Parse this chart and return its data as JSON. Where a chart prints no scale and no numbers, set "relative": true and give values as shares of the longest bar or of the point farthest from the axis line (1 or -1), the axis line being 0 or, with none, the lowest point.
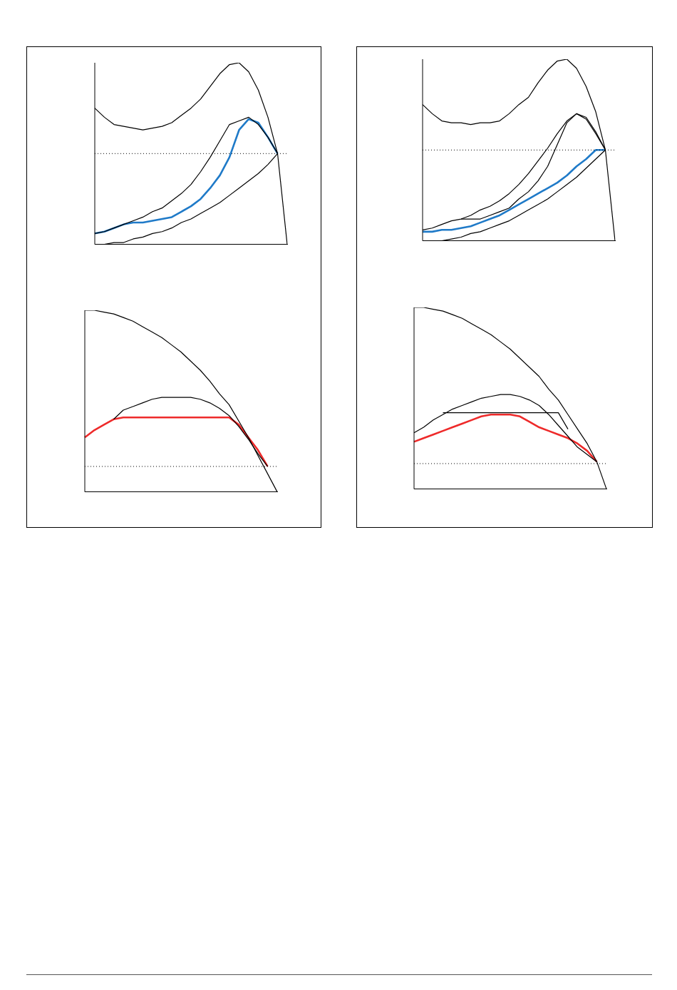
{
  "chart_data": [
    {
      "type": "line",
      "relative": true,
      "categories": [
        null,
        null,
        null,
        null,
        null,
        null,
        null,
        null,
        null,
        null,
        null,
        null,
        null,
        null,
        null,
        null,
        null,
        null,
        null,
        null,
        null
      ],
      "legend": false,
      "grid": false,
      "marker": "none",
      "series": [
        {
          "color": "#000000",
          "values": [
            0.75,
            0.7,
            0.66,
            0.65,
            0.64,
            0.63,
            0.64,
            0.65,
            0.67,
            0.71,
            0.75,
            0.8,
            0.87,
            0.94,
            0.99,
            1,
            0.95,
            0.85,
            0.7,
            0.5,
            0
          ]
        },
        {
          "color": "#000000",
          "values": [
            0.06,
            0.07,
            0.09,
            0.11,
            0.13,
            0.15,
            0.18,
            0.2,
            0.24,
            0.28,
            0.33,
            0.4,
            0.48,
            0.57,
            0.66,
            0.68,
            0.7,
            0.66,
            0.59,
            0.5,
            null
          ]
        },
        {
          "color": "#000000",
          "values": [
            0,
            0,
            0.01,
            0.01,
            0.03,
            0.04,
            0.06,
            0.07,
            0.09,
            0.12,
            0.14,
            0.17,
            0.2,
            0.23,
            0.27,
            0.31,
            0.35,
            0.39,
            0.44,
            0.5,
            null
          ]
        },
        {
          "color": "#1f7ac8",
          "values": [
            0.06,
            0.07,
            0.09,
            0.11,
            0.12,
            0.12,
            0.13,
            0.14,
            0.15,
            0.18,
            0.21,
            0.25,
            0.31,
            0.38,
            0.48,
            0.63,
            0.69,
            0.67,
            0.59,
            0.5,
            null
          ]
        }
      ],
      "ref_lines": [
        {
          "axis": "y",
          "value": 0.5,
          "line_style": "dotted",
          "color": "#000000"
        }
      ]
    },
    {
      "type": "line",
      "relative": true,
      "categories": [
        null,
        null,
        null,
        null,
        null,
        null,
        null,
        null,
        null,
        null,
        null,
        null,
        null,
        null,
        null,
        null,
        null,
        null,
        null,
        null,
        null
      ],
      "legend": false,
      "grid": false,
      "marker": "none",
      "series": [
        {
          "color": "#000000",
          "values": [
            0.75,
            0.7,
            0.66,
            0.65,
            0.65,
            0.64,
            0.65,
            0.65,
            0.66,
            0.7,
            0.75,
            0.79,
            0.87,
            0.94,
            0.99,
            1,
            0.95,
            0.85,
            0.71,
            0.5,
            0
          ]
        },
        {
          "color": "#000000",
          "values": [
            0.06,
            0.07,
            0.09,
            0.11,
            0.12,
            0.14,
            0.17,
            0.19,
            0.22,
            0.26,
            0.31,
            0.37,
            0.44,
            0.51,
            0.59,
            0.66,
            0.7,
            0.68,
            0.6,
            0.5,
            null
          ]
        },
        {
          "color": "#000000",
          "values": [
            null,
            null,
            null,
            null,
            0.12,
            0.12,
            0.12,
            0.14,
            0.16,
            0.18,
            0.23,
            0.27,
            0.33,
            0.41,
            0.53,
            0.65,
            0.7,
            0.67,
            0.59,
            0.5,
            null
          ]
        },
        {
          "color": "#000000",
          "values": [
            0,
            0,
            0,
            0.01,
            0.02,
            0.04,
            0.05,
            0.07,
            0.09,
            0.11,
            0.14,
            0.17,
            0.2,
            0.23,
            0.27,
            0.31,
            0.35,
            0.4,
            0.45,
            0.5,
            null
          ]
        },
        {
          "color": "#1f7ac8",
          "values": [
            0.05,
            0.05,
            0.06,
            0.06,
            0.07,
            0.08,
            0.1,
            0.12,
            0.14,
            0.17,
            0.2,
            0.23,
            0.26,
            0.29,
            0.32,
            0.36,
            0.41,
            0.45,
            0.5,
            0.5,
            null
          ]
        }
      ],
      "ref_lines": [
        {
          "axis": "y",
          "value": 0.5,
          "line_style": "dotted",
          "color": "#000000"
        }
      ]
    },
    {
      "type": "line",
      "relative": true,
      "categories": [
        null,
        null,
        null,
        null,
        null,
        null,
        null,
        null,
        null,
        null,
        null,
        null,
        null,
        null,
        null,
        null,
        null,
        null,
        null,
        null,
        null
      ],
      "legend": false,
      "grid": false,
      "marker": "none",
      "series": [
        {
          "color": "#000000",
          "values": [
            1,
            1,
            0.99,
            0.98,
            0.96,
            0.94,
            0.91,
            0.88,
            0.85,
            0.81,
            0.77,
            0.72,
            0.67,
            0.61,
            0.54,
            0.48,
            0.39,
            0.3,
            0.2,
            0.1,
            0
          ]
        },
        {
          "color": "#000000",
          "values": [
            null,
            null,
            null,
            0.4,
            0.45,
            0.47,
            0.49,
            0.51,
            0.52,
            0.52,
            0.52,
            0.52,
            0.51,
            0.49,
            0.46,
            0.42,
            0.36,
            0.29,
            0.21,
            0.14,
            null
          ]
        },
        {
          "color": "#ee2a2a",
          "values": [
            0.3,
            0.34,
            0.37,
            0.4,
            0.41,
            0.41,
            0.41,
            0.41,
            0.41,
            0.41,
            0.41,
            0.41,
            0.41,
            0.41,
            0.41,
            0.41,
            0.37,
            0.3,
            0.23,
            0.14,
            null
          ]
        }
      ],
      "ref_lines": [
        {
          "axis": "y",
          "value": 0.14,
          "line_style": "dotted",
          "color": "#000000"
        }
      ]
    },
    {
      "type": "line",
      "relative": true,
      "categories": [
        null,
        null,
        null,
        null,
        null,
        null,
        null,
        null,
        null,
        null,
        null,
        null,
        null,
        null,
        null,
        null,
        null,
        null,
        null,
        null,
        null
      ],
      "legend": false,
      "grid": false,
      "marker": "none",
      "series": [
        {
          "color": "#000000",
          "values": [
            1,
            1,
            0.99,
            0.98,
            0.96,
            0.94,
            0.91,
            0.88,
            0.85,
            0.81,
            0.77,
            0.72,
            0.67,
            0.62,
            0.55,
            0.49,
            0.41,
            0.33,
            0.25,
            0.15,
            0
          ]
        },
        {
          "color": "#000000",
          "values": [
            0.31,
            0.34,
            0.38,
            0.41,
            0.44,
            0.46,
            0.48,
            0.5,
            0.51,
            0.52,
            0.52,
            0.51,
            0.49,
            0.46,
            0.41,
            0.35,
            0.29,
            0.23,
            0.19,
            0.15,
            null
          ]
        },
        {
          "color": "#000000",
          "values": [
            null,
            null,
            null,
            0.42,
            0.42,
            0.42,
            0.42,
            0.42,
            0.42,
            0.42,
            0.42,
            0.42,
            0.42,
            0.42,
            0.42,
            0.42,
            0.33,
            null,
            null,
            null,
            null
          ]
        },
        {
          "color": "#ee2a2a",
          "values": [
            0.26,
            0.28,
            0.3,
            0.32,
            0.34,
            0.36,
            0.38,
            0.4,
            0.41,
            0.41,
            0.41,
            0.4,
            0.37,
            0.34,
            0.32,
            0.3,
            0.28,
            0.25,
            0.21,
            0.15,
            null
          ]
        }
      ],
      "ref_lines": [
        {
          "axis": "y",
          "value": 0.14,
          "line_style": "dotted",
          "color": "#000000"
        }
      ]
    }
  ]
}
